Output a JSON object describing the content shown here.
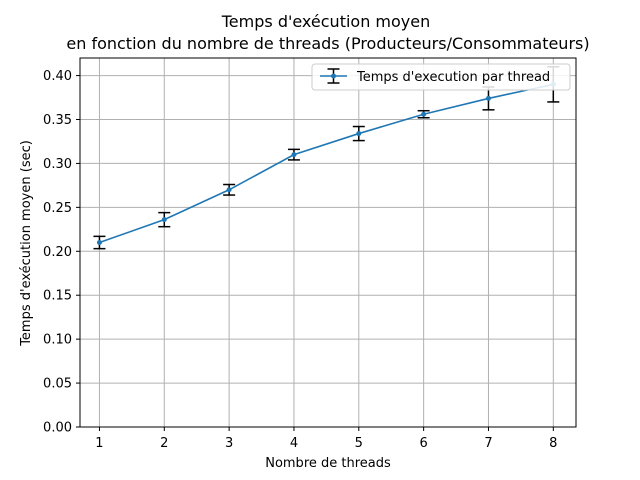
{
  "chart_data": {
    "type": "line",
    "title_line1": "Temps d'exécution moyen",
    "title_line2": "en fonction du nombre de threads  (Producteurs/Consommateurs)",
    "xlabel": "Nombre de threads",
    "ylabel": "Temps d'exécution moyen (sec)",
    "x": [
      1,
      2,
      3,
      4,
      5,
      6,
      7,
      8
    ],
    "xlim": [
      0.7,
      8.35
    ],
    "ylim": [
      0,
      0.42
    ],
    "yticks": [
      "0.00",
      "0.05",
      "0.10",
      "0.15",
      "0.20",
      "0.25",
      "0.30",
      "0.35",
      "0.40"
    ],
    "series": [
      {
        "name": "Temps d'execution par thread",
        "color": "#1f77b4",
        "values": [
          0.21,
          0.236,
          0.27,
          0.31,
          0.334,
          0.356,
          0.374,
          0.39
        ],
        "errors": [
          0.007,
          0.008,
          0.006,
          0.006,
          0.008,
          0.004,
          0.013,
          0.02
        ]
      }
    ],
    "grid": true,
    "legend_position": "top-right"
  }
}
